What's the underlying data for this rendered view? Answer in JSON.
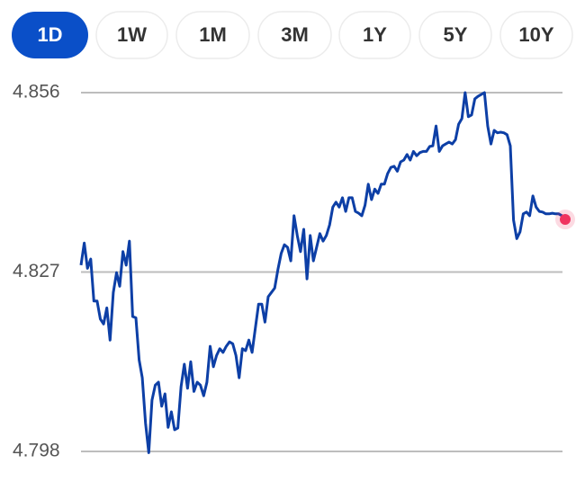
{
  "range_buttons": [
    "1D",
    "1W",
    "1M",
    "3M",
    "1Y",
    "5Y",
    "10Y"
  ],
  "chart_data": {
    "type": "line",
    "color": "#0d3fa6",
    "grid": true,
    "ylim": [
      4.798,
      4.856
    ],
    "yticks": [
      4.798,
      4.827,
      4.856
    ],
    "values": [
      4.8281,
      4.8317,
      4.8276,
      4.8291,
      4.8223,
      4.8223,
      4.8194,
      4.8186,
      4.8212,
      4.816,
      4.8237,
      4.8269,
      4.8247,
      4.8303,
      4.8281,
      4.832,
      4.8198,
      4.8196,
      4.8128,
      4.8099,
      4.8026,
      4.7978,
      4.8063,
      4.8087,
      4.8092,
      4.8053,
      4.8073,
      4.8019,
      4.8044,
      4.8015,
      4.8018,
      4.8085,
      4.8121,
      4.8082,
      4.8125,
      4.8077,
      4.8092,
      4.8087,
      4.807,
      4.8092,
      4.815,
      4.8117,
      4.8135,
      4.8146,
      4.814,
      4.815,
      4.8157,
      4.8154,
      4.8135,
      4.8099,
      4.8146,
      4.8143,
      4.816,
      4.814,
      4.8179,
      4.8218,
      4.8218,
      4.8189,
      4.823,
      4.8237,
      4.8244,
      4.8274,
      4.83,
      4.8314,
      4.831,
      4.8288,
      4.8361,
      4.8329,
      4.8303,
      4.8339,
      4.8259,
      4.8329,
      4.8288,
      4.831,
      4.8332,
      4.832,
      4.8329,
      4.8346,
      4.8375,
      4.8383,
      4.8375,
      4.839,
      4.8368,
      4.839,
      4.839,
      4.8368,
      4.8365,
      4.8361,
      4.8378,
      4.8412,
      4.8387,
      4.8404,
      4.8397,
      4.8412,
      4.8412,
      4.8429,
      4.8439,
      4.8441,
      4.8433,
      4.8448,
      4.8451,
      4.846,
      4.8451,
      4.8465,
      4.8458,
      4.8463,
      4.8465,
      4.8465,
      4.8473,
      4.8474,
      4.8506,
      4.8465,
      4.8474,
      4.8477,
      4.848,
      4.8477,
      4.8484,
      4.8509,
      4.8518,
      4.856,
      4.8521,
      4.8524,
      4.855,
      4.8554,
      4.8557,
      4.856,
      4.8506,
      4.8477,
      4.8499,
      4.8495,
      4.8496,
      4.8495,
      4.8492,
      4.8474,
      4.8354,
      4.8324,
      4.8335,
      4.8364,
      4.8367,
      4.8361,
      4.8393,
      4.8375,
      4.8368,
      4.8367,
      4.8364,
      4.8364,
      4.8365,
      4.8364,
      4.8364,
      4.8361,
      4.8355
    ]
  }
}
